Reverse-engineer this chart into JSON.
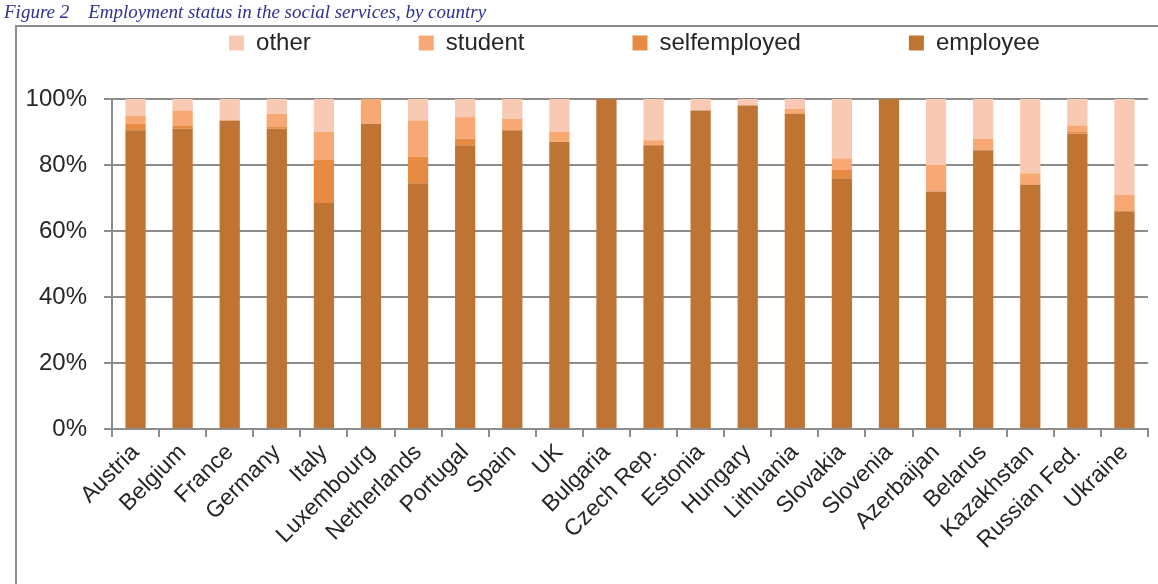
{
  "chart_data": {
    "type": "bar",
    "title": "Figure 2    Employment status in the social services, by country",
    "stacked": true,
    "legend": "top",
    "grid": "y",
    "categories": [
      "Austria",
      "Belgium",
      "France",
      "Germany",
      "Italy",
      "Luxembourg",
      "Netherlands",
      "Portugal",
      "Spain",
      "UK",
      "Bulgaria",
      "Czech Rep.",
      "Estonia",
      "Hungary",
      "Lithuania",
      "Slovakia",
      "Slovenia",
      "Azerbaijan",
      "Belarus",
      "Kazakhstan",
      "Russian Fed.",
      "Ukraine"
    ],
    "ylim": [
      0,
      100
    ],
    "yticks": [
      {
        "value": 0,
        "label": "0%"
      },
      {
        "value": 20,
        "label": "20%"
      },
      {
        "value": 40,
        "label": "40%"
      },
      {
        "value": 60,
        "label": "60%"
      },
      {
        "value": 80,
        "label": "80%"
      },
      {
        "value": 100,
        "label": "100%"
      }
    ],
    "series": [
      {
        "name": "employee",
        "color": "#c07433",
        "values": [
          90.5,
          91,
          93.5,
          91,
          68.5,
          92.5,
          74.5,
          86,
          90.5,
          87,
          100,
          86,
          96.5,
          98,
          95.5,
          76,
          100,
          72,
          84.5,
          74,
          89.5,
          66
        ]
      },
      {
        "name": "selfemployed",
        "color": "#e88b42",
        "values": [
          2,
          1,
          0,
          0.5,
          13,
          0,
          8,
          2,
          0,
          0,
          0,
          0,
          0,
          0,
          0,
          2.5,
          0,
          0,
          0,
          0,
          0.5,
          0
        ]
      },
      {
        "name": "student",
        "color": "#f7a874",
        "values": [
          2.5,
          4.5,
          0,
          4,
          8.5,
          7.5,
          11,
          6.5,
          3.5,
          3,
          0,
          1.5,
          0,
          0,
          1.5,
          3.5,
          0,
          8,
          3.5,
          3.5,
          2,
          5
        ]
      },
      {
        "name": "other",
        "color": "#f8cab3",
        "values": [
          5,
          3.5,
          6.5,
          4.5,
          10,
          0,
          6.5,
          5.5,
          6,
          10,
          0,
          12.5,
          3.5,
          2,
          3,
          18,
          0,
          20,
          12,
          22.5,
          8,
          29
        ]
      }
    ]
  }
}
